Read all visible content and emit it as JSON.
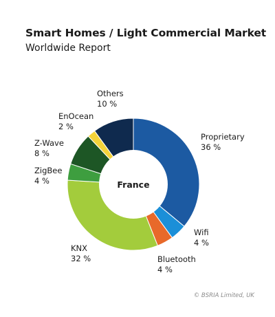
{
  "chart_data": {
    "type": "pie",
    "variant": "donut",
    "title": "Smart Homes / Light Commercial Market",
    "subtitle": "Worldwide Report",
    "center_label": "France",
    "slices": [
      {
        "name": "Proprietary",
        "value": 36,
        "label": "36 %",
        "color": "#1c5aa2"
      },
      {
        "name": "Wifi",
        "value": 4,
        "label": "4 %",
        "color": "#1b8fd8"
      },
      {
        "name": "Bluetooth",
        "value": 4,
        "label": "4 %",
        "color": "#e8692a"
      },
      {
        "name": "KNX",
        "value": 32,
        "label": "32 %",
        "color": "#a3cc3c"
      },
      {
        "name": "ZigBee",
        "value": 4,
        "label": "4 %",
        "color": "#3e9e3f"
      },
      {
        "name": "Z-Wave",
        "value": 8,
        "label": "8 %",
        "color": "#1d5625"
      },
      {
        "name": "EnOcean",
        "value": 2,
        "label": "2 %",
        "color": "#f4d33a"
      },
      {
        "name": "Others",
        "value": 10,
        "label": "10 %",
        "color": "#0f2a4e"
      }
    ]
  },
  "footer": {
    "copyright": "© BSRIA Limited, UK"
  }
}
